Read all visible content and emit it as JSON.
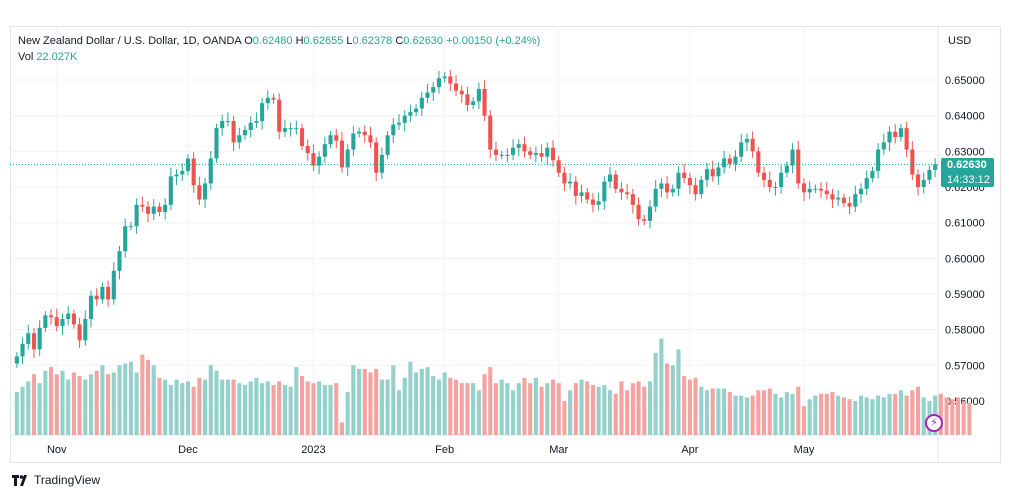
{
  "legend": {
    "symbol": "New Zealand Dollar / U.S. Dollar, 1D, OANDA",
    "o_label": "O",
    "o_value": "0.62480",
    "h_label": "H",
    "h_value": "0.62655",
    "l_label": "L",
    "l_value": "0.62378",
    "c_label": "C",
    "c_value": "0.62630",
    "change": "+0.00150 (+0.24%)",
    "vol_label": "Vol",
    "vol_value": "22.027K"
  },
  "currency": "USD",
  "price_tag": {
    "value": "0.62630",
    "countdown": "14:33:12"
  },
  "branding": "TradingView",
  "colors": {
    "up": "#26a69a",
    "down": "#ef5350",
    "up_vol": "#93d1ca",
    "down_vol": "#f4a3a0",
    "grid": "#f0f3fa",
    "last_line": "#26a69a"
  },
  "chart_data": {
    "type": "candlestick",
    "y_ticks": [
      "0.65000",
      "0.64000",
      "0.63000",
      "0.62000",
      "0.61000",
      "0.60000",
      "0.59000",
      "0.58000",
      "0.57000",
      "0.56000"
    ],
    "x_ticks": [
      {
        "label": "Nov",
        "index": 7
      },
      {
        "label": "Dec",
        "index": 30
      },
      {
        "label": "2023",
        "index": 52
      },
      {
        "label": "Feb",
        "index": 75
      },
      {
        "label": "Mar",
        "index": 95
      },
      {
        "label": "Apr",
        "index": 118
      },
      {
        "label": "May",
        "index": 138
      }
    ],
    "ylim": [
      0.5555,
      0.6505
    ],
    "last_close": 0.6263,
    "closes": [
      0.5725,
      0.576,
      0.579,
      0.5745,
      0.5805,
      0.584,
      0.5835,
      0.581,
      0.583,
      0.5845,
      0.5815,
      0.577,
      0.583,
      0.5895,
      0.5885,
      0.592,
      0.5885,
      0.5965,
      0.602,
      0.609,
      0.609,
      0.615,
      0.6145,
      0.6125,
      0.6145,
      0.613,
      0.615,
      0.623,
      0.6235,
      0.6245,
      0.628,
      0.6205,
      0.6165,
      0.621,
      0.628,
      0.6365,
      0.6385,
      0.6385,
      0.6325,
      0.6345,
      0.636,
      0.638,
      0.6385,
      0.6435,
      0.645,
      0.6445,
      0.6355,
      0.6365,
      0.6365,
      0.6365,
      0.6315,
      0.6295,
      0.626,
      0.6285,
      0.632,
      0.6345,
      0.633,
      0.6255,
      0.6305,
      0.635,
      0.6355,
      0.6345,
      0.6325,
      0.624,
      0.629,
      0.6345,
      0.6375,
      0.638,
      0.64,
      0.641,
      0.642,
      0.645,
      0.6465,
      0.648,
      0.6505,
      0.651,
      0.649,
      0.647,
      0.646,
      0.643,
      0.644,
      0.6475,
      0.64,
      0.6305,
      0.629,
      0.629,
      0.629,
      0.631,
      0.632,
      0.63,
      0.629,
      0.6295,
      0.6285,
      0.631,
      0.6275,
      0.624,
      0.621,
      0.6215,
      0.6175,
      0.6185,
      0.6165,
      0.615,
      0.616,
      0.6215,
      0.6235,
      0.6195,
      0.6185,
      0.618,
      0.615,
      0.611,
      0.6105,
      0.6145,
      0.6195,
      0.621,
      0.6185,
      0.6195,
      0.624,
      0.6225,
      0.6205,
      0.618,
      0.622,
      0.625,
      0.623,
      0.6255,
      0.628,
      0.6265,
      0.6285,
      0.6325,
      0.6335,
      0.63,
      0.624,
      0.622,
      0.62,
      0.62,
      0.624,
      0.626,
      0.6305,
      0.621,
      0.6185,
      0.6195,
      0.6195,
      0.619,
      0.618,
      0.6165,
      0.617,
      0.6155,
      0.6145,
      0.618,
      0.6195,
      0.6225,
      0.6245,
      0.6305,
      0.6325,
      0.6355,
      0.634,
      0.6365,
      0.6305,
      0.6235,
      0.62,
      0.622,
      0.6248,
      0.6263
    ],
    "volumes": [
      0.5625,
      0.564,
      0.5655,
      0.5675,
      0.565,
      0.5685,
      0.5695,
      0.5675,
      0.5685,
      0.566,
      0.568,
      0.567,
      0.566,
      0.5675,
      0.5685,
      0.57,
      0.5675,
      0.568,
      0.57,
      0.5705,
      0.571,
      0.568,
      0.573,
      0.5715,
      0.57,
      0.5665,
      0.566,
      0.5645,
      0.566,
      0.565,
      0.5655,
      0.564,
      0.5665,
      0.566,
      0.57,
      0.5685,
      0.566,
      0.566,
      0.566,
      0.565,
      0.5645,
      0.5655,
      0.5665,
      0.565,
      0.5655,
      0.5645,
      0.5655,
      0.5645,
      0.564,
      0.5695,
      0.567,
      0.5655,
      0.565,
      0.5655,
      0.5645,
      0.5645,
      0.565,
      0.554,
      0.5625,
      0.57,
      0.569,
      0.569,
      0.568,
      0.569,
      0.566,
      0.566,
      0.57,
      0.563,
      0.5665,
      0.571,
      0.568,
      0.569,
      0.5695,
      0.567,
      0.566,
      0.568,
      0.5665,
      0.566,
      0.565,
      0.565,
      0.565,
      0.563,
      0.5675,
      0.5695,
      0.565,
      0.566,
      0.565,
      0.563,
      0.565,
      0.5665,
      0.565,
      0.5665,
      0.564,
      0.565,
      0.566,
      0.565,
      0.56,
      0.563,
      0.565,
      0.566,
      0.5655,
      0.5645,
      0.564,
      0.5645,
      0.563,
      0.562,
      0.5655,
      0.563,
      0.565,
      0.5655,
      0.564,
      0.5655,
      0.5735,
      0.5775,
      0.5705,
      0.57,
      0.5745,
      0.567,
      0.566,
      0.5665,
      0.564,
      0.563,
      0.5635,
      0.5635,
      0.5635,
      0.5625,
      0.5615,
      0.5615,
      0.561,
      0.5615,
      0.563,
      0.563,
      0.5635,
      0.562,
      0.561,
      0.5625,
      0.562,
      0.564,
      0.5585,
      0.5605,
      0.5615,
      0.562,
      0.562,
      0.5625,
      0.5615,
      0.561,
      0.5605,
      0.56,
      0.5615,
      0.561,
      0.5605,
      0.5615,
      0.561,
      0.562,
      0.562,
      0.563,
      0.5615,
      0.563,
      0.564,
      0.561,
      0.56,
      0.5615,
      0.562,
      0.561,
      0.5605,
      0.561,
      0.56,
      0.5595
    ]
  }
}
